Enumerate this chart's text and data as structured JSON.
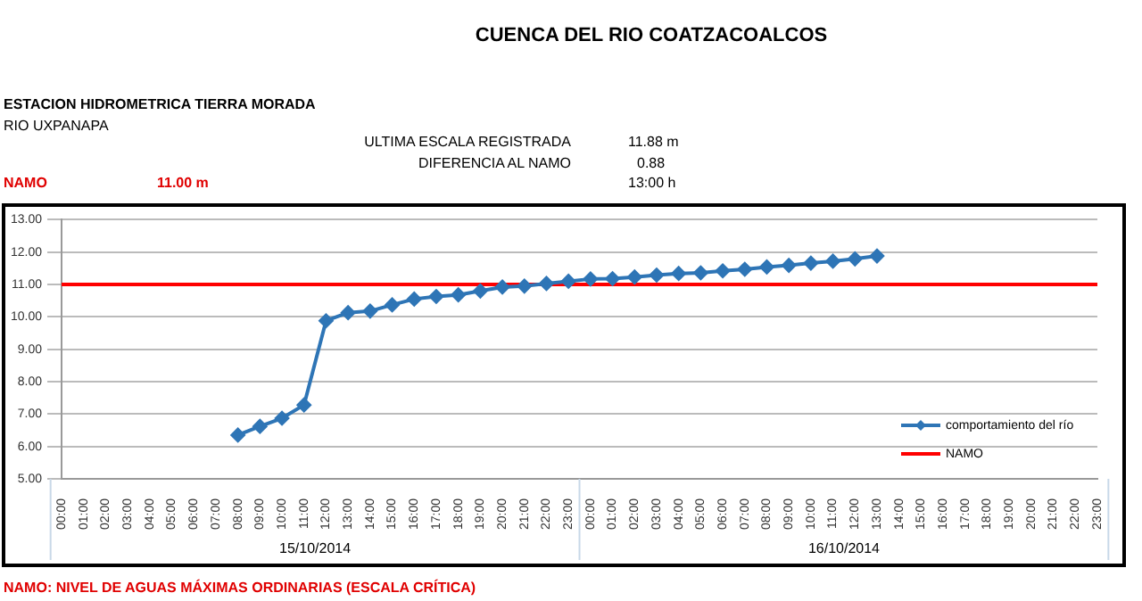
{
  "chart_data": {
    "type": "line",
    "title": "CUENCA DEL RIO COATZACOALCOS",
    "categories": [
      "00:00",
      "01:00",
      "02:00",
      "03:00",
      "04:00",
      "05:00",
      "06:00",
      "07:00",
      "08:00",
      "09:00",
      "10:00",
      "11:00",
      "12:00",
      "13:00",
      "14:00",
      "15:00",
      "16:00",
      "17:00",
      "18:00",
      "19:00",
      "20:00",
      "21:00",
      "22:00",
      "23:00",
      "00:00",
      "01:00",
      "02:00",
      "03:00",
      "04:00",
      "05:00",
      "06:00",
      "07:00",
      "08:00",
      "09:00",
      "10:00",
      "11:00",
      "12:00",
      "13:00",
      "14:00",
      "15:00",
      "16:00",
      "17:00",
      "18:00",
      "19:00",
      "20:00",
      "21:00",
      "22:00",
      "23:00"
    ],
    "series": [
      {
        "name": "comportamiento del río",
        "color": "#2e75b6",
        "marker": "diamond",
        "values": [
          null,
          null,
          null,
          null,
          null,
          null,
          null,
          null,
          6.35,
          6.62,
          6.87,
          7.28,
          9.88,
          10.13,
          10.18,
          10.37,
          10.55,
          10.63,
          10.68,
          10.8,
          10.92,
          10.95,
          11.03,
          11.1,
          11.17,
          11.18,
          11.23,
          11.29,
          11.34,
          11.36,
          11.42,
          11.47,
          11.54,
          11.59,
          11.66,
          11.72,
          11.79,
          11.88,
          null,
          null,
          null,
          null,
          null,
          null,
          null,
          null,
          null,
          null
        ]
      },
      {
        "name": "NAMO",
        "color": "#ff0000",
        "marker": "none",
        "values": [
          11,
          11,
          11,
          11,
          11,
          11,
          11,
          11,
          11,
          11,
          11,
          11,
          11,
          11,
          11,
          11,
          11,
          11,
          11,
          11,
          11,
          11,
          11,
          11,
          11,
          11,
          11,
          11,
          11,
          11,
          11,
          11,
          11,
          11,
          11,
          11,
          11,
          11,
          11,
          11,
          11,
          11,
          11,
          11,
          11,
          11,
          11,
          11
        ]
      }
    ],
    "ylim": [
      5,
      13
    ],
    "yticks": [
      {
        "value": 5,
        "label": "5.00"
      },
      {
        "value": 6,
        "label": "6.00"
      },
      {
        "value": 7,
        "label": "7.00"
      },
      {
        "value": 8,
        "label": "8.00"
      },
      {
        "value": 9,
        "label": "9.00"
      },
      {
        "value": 10,
        "label": "10.00"
      },
      {
        "value": 11,
        "label": "11.00"
      },
      {
        "value": 12,
        "label": "12.00"
      },
      {
        "value": 13,
        "label": "13.00"
      }
    ],
    "grid": "y",
    "legend": "bottom right",
    "annotations": [
      "ESTACION HIDROMETRICA TIERRA MORADA",
      "RIO UXPANAPA",
      "ULTIMA ESCALA REGISTRADA",
      "11.88 m",
      "DIFERENCIA AL NAMO",
      "0.88",
      "NAMO",
      "11.00 m",
      "13:00 h",
      "15/10/2014",
      "16/10/2014",
      "NAMO: NIVEL DE AGUAS MÁXIMAS ORDINARIAS (ESCALA CRÍTICA)"
    ]
  }
}
